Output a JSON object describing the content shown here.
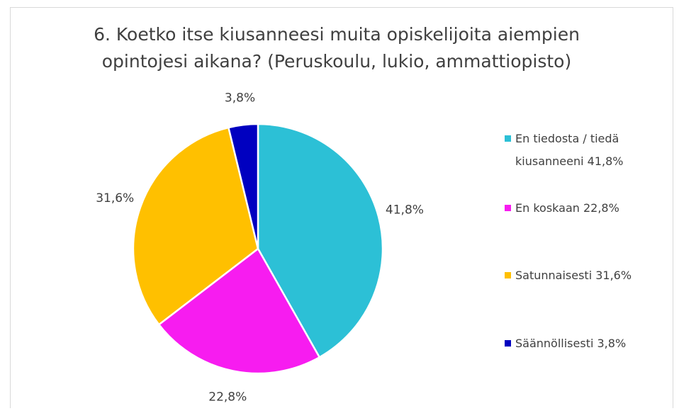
{
  "chart_data": {
    "type": "pie",
    "title": "6. Koetko itse kiusanneesi muita opiskelijoita aiempien opintojesi aikana? (Peruskoulu, lukio, ammattiopisto)",
    "categories": [
      "En tiedosta / tiedä kiusanneeni 41,8%",
      "En koskaan 22,8%",
      "Satunnaisesti 31,6%",
      "Säännöllisesti 3,8%"
    ],
    "values": [
      41.8,
      22.8,
      31.6,
      3.8
    ],
    "value_labels": [
      "41,8%",
      "22,8%",
      "31,6%",
      "3,8%"
    ],
    "colors": [
      "#2cc0d6",
      "#f71cf0",
      "#ffc000",
      "#0000c0"
    ],
    "legend": "right"
  }
}
